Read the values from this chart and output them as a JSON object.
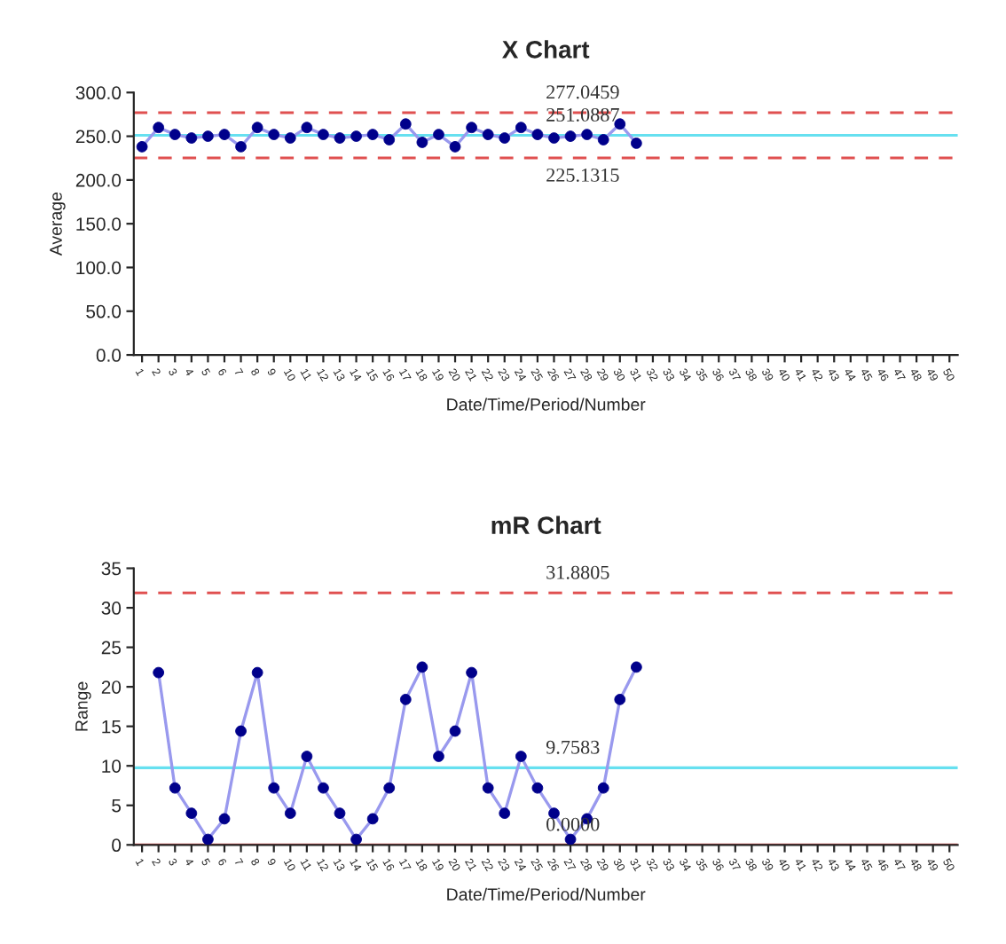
{
  "chart_data": [
    {
      "type": "line",
      "title": "X Chart",
      "xlabel": "Date/Time/Period/Number",
      "ylabel": "Average",
      "categories": [
        "1",
        "2",
        "3",
        "4",
        "5",
        "6",
        "7",
        "8",
        "9",
        "10",
        "11",
        "12",
        "13",
        "14",
        "15",
        "16",
        "17",
        "18",
        "19",
        "20",
        "21",
        "22",
        "23",
        "24",
        "25",
        "26",
        "27",
        "28",
        "29",
        "30",
        "31",
        "32",
        "33",
        "34",
        "35",
        "36",
        "37",
        "38",
        "39",
        "40",
        "41",
        "42",
        "43",
        "44",
        "45",
        "46",
        "47",
        "48",
        "49",
        "50"
      ],
      "series": [
        {
          "color": "#00008b",
          "values": [
            238,
            260,
            252,
            248,
            250,
            252,
            238,
            260,
            252,
            248,
            260,
            252,
            248,
            250,
            252,
            246,
            264,
            243,
            252,
            238,
            260,
            252,
            248,
            260,
            252,
            248,
            250,
            252,
            246,
            264,
            242,
            null,
            null,
            null,
            null,
            null,
            null,
            null,
            null,
            null,
            null,
            null,
            null,
            null,
            null,
            null,
            null,
            null,
            null,
            null
          ]
        }
      ],
      "ylim": [
        0,
        300
      ],
      "yticks": [
        {
          "value": 0,
          "label": "0.0"
        },
        {
          "value": 50,
          "label": "50.0"
        },
        {
          "value": 100,
          "label": "100.0"
        },
        {
          "value": 150,
          "label": "150.0"
        },
        {
          "value": 200,
          "label": "200.0"
        },
        {
          "value": 250,
          "label": "250.0"
        },
        {
          "value": 300,
          "label": "300.0"
        }
      ],
      "ref_lines": [
        {
          "axis": "y",
          "value": 277.0459,
          "label": "277.0459",
          "color": "#e05050",
          "line_style": "dashed"
        },
        {
          "axis": "y",
          "value": 251.0887,
          "label": "251.0887",
          "color": "#66e0f0",
          "line_style": "solid"
        },
        {
          "axis": "y",
          "value": 225.1315,
          "label": "225.1315",
          "color": "#e05050",
          "line_style": "dashed"
        }
      ],
      "marker": "circle",
      "line_style": "solid",
      "grid": false,
      "legend": false
    },
    {
      "type": "line",
      "title": "mR Chart",
      "xlabel": "Date/Time/Period/Number",
      "ylabel": "Range",
      "categories": [
        "1",
        "2",
        "3",
        "4",
        "5",
        "6",
        "7",
        "8",
        "9",
        "10",
        "11",
        "12",
        "13",
        "14",
        "15",
        "16",
        "17",
        "18",
        "19",
        "20",
        "21",
        "22",
        "23",
        "24",
        "25",
        "26",
        "27",
        "28",
        "29",
        "30",
        "31",
        "32",
        "33",
        "34",
        "35",
        "36",
        "37",
        "38",
        "39",
        "40",
        "41",
        "42",
        "43",
        "44",
        "45",
        "46",
        "47",
        "48",
        "49",
        "50"
      ],
      "series": [
        {
          "color": "#00008b",
          "values": [
            null,
            21.8,
            7.2,
            4.0,
            0.7,
            3.3,
            14.4,
            21.8,
            7.2,
            4.0,
            11.2,
            7.2,
            4.0,
            0.7,
            3.3,
            7.2,
            18.4,
            22.5,
            11.2,
            14.4,
            21.8,
            7.2,
            4.0,
            11.2,
            7.2,
            4.0,
            0.7,
            3.3,
            7.2,
            18.4,
            22.5,
            null,
            null,
            null,
            null,
            null,
            null,
            null,
            null,
            null,
            null,
            null,
            null,
            null,
            null,
            null,
            null,
            null,
            null,
            null
          ]
        }
      ],
      "ylim": [
        0,
        35
      ],
      "yticks": [
        0,
        5,
        10,
        15,
        20,
        25,
        30,
        35
      ],
      "ref_lines": [
        {
          "axis": "y",
          "value": 31.8805,
          "label": "31.8805",
          "color": "#e05050",
          "line_style": "dashed"
        },
        {
          "axis": "y",
          "value": 9.7583,
          "label": "9.7583",
          "color": "#66e0f0",
          "line_style": "solid"
        },
        {
          "axis": "y",
          "value": 0.0,
          "label": "0.0000",
          "color": "#e05050",
          "line_style": "solid"
        }
      ],
      "marker": "circle",
      "line_style": "solid",
      "grid": false,
      "legend": false
    }
  ]
}
